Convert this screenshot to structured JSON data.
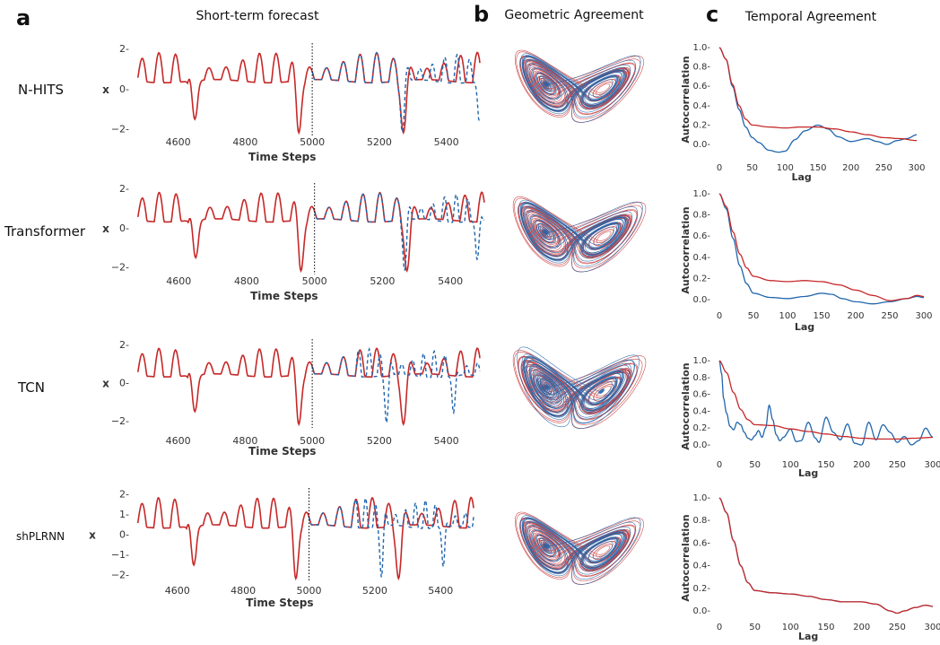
{
  "panel_labels": [
    "a",
    "b",
    "c"
  ],
  "column_titles": [
    "Short-term forecast",
    "Geometric Agreement",
    "Temporal Agreement"
  ],
  "colors": {
    "ground_truth": "#c62828",
    "prediction": "#2166ac",
    "divider": "#000000"
  },
  "chart_data": [
    {
      "type": "line",
      "model": "N-HITS",
      "xlabel": "Time Steps",
      "ylabel": "x",
      "xticks": [
        4600,
        4800,
        5000,
        5200,
        5400
      ],
      "yticks": [
        "2",
        "0",
        "−2"
      ],
      "xlim": [
        4470,
        5500
      ],
      "ylim": [
        -2.2,
        2.1
      ],
      "forecast_start": 5000,
      "prediction_style": "dashed",
      "ground_truth_peaks": [
        4510,
        4540,
        4650,
        4725,
        4765,
        4805,
        4850,
        4890,
        4970,
        5030,
        5080,
        5160,
        5205,
        5260,
        5300,
        5380,
        5420,
        5460,
        5500
      ],
      "prediction_divergence": 5260
    },
    {
      "type": "line",
      "model": "Transformer",
      "xlabel": "Time Steps",
      "ylabel": "x",
      "xticks": [
        4600,
        4800,
        5000,
        5200,
        5400
      ],
      "yticks": [
        "2",
        "0",
        "−2"
      ],
      "xlim": [
        4470,
        5500
      ],
      "ylim": [
        -2.2,
        2.1
      ],
      "forecast_start": 5000,
      "prediction_style": "dashed",
      "prediction_divergence": 5250
    },
    {
      "type": "line",
      "model": "TCN",
      "xlabel": "Time Steps",
      "ylabel": "x",
      "xticks": [
        4600,
        4800,
        5000,
        5200,
        5400
      ],
      "yticks": [
        "2",
        "0",
        "−2"
      ],
      "xlim": [
        4470,
        5500
      ],
      "ylim": [
        -2.2,
        2.1
      ],
      "forecast_start": 5000,
      "prediction_style": "dashed",
      "prediction_divergence": 5130
    },
    {
      "type": "line",
      "model": "shPLRNN",
      "xlabel": "Time Steps",
      "ylabel": "x",
      "xticks": [
        4600,
        4800,
        5000,
        5200,
        5400
      ],
      "yticks": [
        "2",
        "1",
        "0",
        "−1",
        "−2"
      ],
      "xlim": [
        4470,
        5500
      ],
      "ylim": [
        -2.2,
        2.1
      ],
      "forecast_start": 5000,
      "prediction_style": "dashed",
      "prediction_divergence": 5140
    },
    {
      "type": "scatter",
      "model": "N-HITS",
      "description_series": [
        "ground truth attractor",
        "generated attractor"
      ]
    },
    {
      "type": "scatter",
      "model": "Transformer"
    },
    {
      "type": "scatter",
      "model": "TCN"
    },
    {
      "type": "scatter",
      "model": "shPLRNN"
    },
    {
      "type": "line",
      "model": "N-HITS",
      "xlabel": "Lag",
      "ylabel": "Autocorrelation",
      "xlim": [
        0,
        300
      ],
      "ylim": [
        -0.05,
        1.05
      ],
      "xticks": [
        0,
        50,
        100,
        150,
        200,
        250,
        300
      ],
      "yticks": [
        1.0,
        0.8,
        0.6,
        0.4,
        0.2,
        0.0
      ],
      "ground_truth": [
        [
          0,
          1.0
        ],
        [
          10,
          0.88
        ],
        [
          20,
          0.62
        ],
        [
          30,
          0.4
        ],
        [
          40,
          0.26
        ],
        [
          50,
          0.2
        ],
        [
          75,
          0.18
        ],
        [
          100,
          0.17
        ],
        [
          125,
          0.18
        ],
        [
          150,
          0.18
        ],
        [
          175,
          0.16
        ],
        [
          200,
          0.13
        ],
        [
          225,
          0.1
        ],
        [
          250,
          0.07
        ],
        [
          275,
          0.06
        ],
        [
          300,
          0.04
        ]
      ],
      "prediction": [
        [
          0,
          1.0
        ],
        [
          10,
          0.88
        ],
        [
          20,
          0.6
        ],
        [
          30,
          0.36
        ],
        [
          40,
          0.18
        ],
        [
          50,
          0.07
        ],
        [
          60,
          0.02
        ],
        [
          75,
          -0.06
        ],
        [
          90,
          -0.08
        ],
        [
          100,
          -0.07
        ],
        [
          115,
          0.05
        ],
        [
          130,
          0.14
        ],
        [
          150,
          0.2
        ],
        [
          165,
          0.16
        ],
        [
          180,
          0.08
        ],
        [
          200,
          0.03
        ],
        [
          225,
          0.06
        ],
        [
          240,
          0.03
        ],
        [
          255,
          0.0
        ],
        [
          270,
          0.04
        ],
        [
          285,
          0.06
        ],
        [
          300,
          0.1
        ]
      ]
    },
    {
      "type": "line",
      "model": "Transformer",
      "xlabel": "Lag",
      "ylabel": "Autocorrelation",
      "xlim": [
        0,
        300
      ],
      "ylim": [
        -0.05,
        1.05
      ],
      "xticks": [
        0,
        50,
        100,
        150,
        200,
        250,
        300
      ],
      "yticks": [
        1.0,
        0.8,
        0.6,
        0.4,
        0.2,
        0.0
      ],
      "ground_truth": [
        [
          0,
          1.0
        ],
        [
          10,
          0.88
        ],
        [
          20,
          0.64
        ],
        [
          30,
          0.43
        ],
        [
          40,
          0.3
        ],
        [
          50,
          0.22
        ],
        [
          75,
          0.18
        ],
        [
          100,
          0.17
        ],
        [
          125,
          0.18
        ],
        [
          150,
          0.17
        ],
        [
          175,
          0.14
        ],
        [
          200,
          0.09
        ],
        [
          225,
          0.04
        ],
        [
          250,
          -0.01
        ],
        [
          275,
          0.01
        ],
        [
          290,
          0.04
        ],
        [
          300,
          0.03
        ]
      ],
      "prediction": [
        [
          0,
          1.0
        ],
        [
          10,
          0.86
        ],
        [
          20,
          0.58
        ],
        [
          30,
          0.32
        ],
        [
          40,
          0.15
        ],
        [
          50,
          0.06
        ],
        [
          75,
          0.02
        ],
        [
          100,
          0.01
        ],
        [
          125,
          0.03
        ],
        [
          150,
          0.06
        ],
        [
          165,
          0.05
        ],
        [
          180,
          0.01
        ],
        [
          200,
          -0.02
        ],
        [
          225,
          -0.04
        ],
        [
          250,
          -0.02
        ],
        [
          275,
          0.01
        ],
        [
          290,
          0.03
        ],
        [
          300,
          0.02
        ]
      ]
    },
    {
      "type": "line",
      "model": "TCN",
      "xlabel": "Lag",
      "ylabel": "Autocorrelation",
      "xlim": [
        0,
        300
      ],
      "ylim": [
        -0.05,
        1.05
      ],
      "xticks": [
        0,
        50,
        100,
        150,
        200,
        250,
        300
      ],
      "yticks": [
        1.0,
        0.8,
        0.6,
        0.4,
        0.2,
        0.0
      ],
      "ground_truth": [
        [
          0,
          1.0
        ],
        [
          10,
          0.86
        ],
        [
          20,
          0.62
        ],
        [
          30,
          0.42
        ],
        [
          40,
          0.3
        ],
        [
          50,
          0.24
        ],
        [
          75,
          0.23
        ],
        [
          100,
          0.19
        ],
        [
          125,
          0.16
        ],
        [
          150,
          0.13
        ],
        [
          175,
          0.1
        ],
        [
          200,
          0.08
        ],
        [
          225,
          0.07
        ],
        [
          250,
          0.07
        ],
        [
          275,
          0.08
        ],
        [
          300,
          0.09
        ]
      ],
      "prediction": [
        [
          0,
          1.0
        ],
        [
          3,
          0.85
        ],
        [
          6,
          0.55
        ],
        [
          10,
          0.38
        ],
        [
          15,
          0.22
        ],
        [
          20,
          0.18
        ],
        [
          25,
          0.27
        ],
        [
          30,
          0.24
        ],
        [
          35,
          0.15
        ],
        [
          40,
          0.08
        ],
        [
          45,
          0.06
        ],
        [
          50,
          0.11
        ],
        [
          55,
          0.17
        ],
        [
          60,
          0.09
        ],
        [
          65,
          0.2
        ],
        [
          70,
          0.47
        ],
        [
          75,
          0.3
        ],
        [
          80,
          0.12
        ],
        [
          85,
          0.05
        ],
        [
          90,
          0.09
        ],
        [
          100,
          0.19
        ],
        [
          108,
          0.04
        ],
        [
          115,
          0.05
        ],
        [
          125,
          0.27
        ],
        [
          135,
          0.08
        ],
        [
          140,
          0.03
        ],
        [
          150,
          0.33
        ],
        [
          160,
          0.15
        ],
        [
          170,
          0.06
        ],
        [
          180,
          0.25
        ],
        [
          190,
          0.02
        ],
        [
          200,
          0.0
        ],
        [
          210,
          0.27
        ],
        [
          220,
          0.06
        ],
        [
          230,
          0.24
        ],
        [
          240,
          0.15
        ],
        [
          250,
          0.03
        ],
        [
          260,
          0.1
        ],
        [
          270,
          0.0
        ],
        [
          280,
          0.05
        ],
        [
          290,
          0.2
        ],
        [
          300,
          0.09
        ]
      ]
    },
    {
      "type": "line",
      "model": "shPLRNN",
      "xlabel": "Lag",
      "ylabel": "Autocorrelation",
      "xlim": [
        0,
        300
      ],
      "ylim": [
        -0.05,
        1.05
      ],
      "xticks": [
        0,
        50,
        100,
        150,
        200,
        250,
        300
      ],
      "yticks": [
        1.0,
        0.8,
        0.6,
        0.4,
        0.2,
        0.0
      ],
      "ground_truth": [
        [
          0,
          1.0
        ],
        [
          10,
          0.87
        ],
        [
          20,
          0.62
        ],
        [
          30,
          0.4
        ],
        [
          40,
          0.25
        ],
        [
          50,
          0.18
        ],
        [
          75,
          0.16
        ],
        [
          100,
          0.15
        ],
        [
          125,
          0.13
        ],
        [
          150,
          0.1
        ],
        [
          175,
          0.08
        ],
        [
          200,
          0.08
        ],
        [
          220,
          0.06
        ],
        [
          240,
          0.0
        ],
        [
          250,
          -0.02
        ],
        [
          260,
          0.0
        ],
        [
          275,
          0.03
        ],
        [
          290,
          0.05
        ],
        [
          300,
          0.04
        ]
      ],
      "prediction": [
        [
          0,
          1.0
        ],
        [
          10,
          0.87
        ],
        [
          20,
          0.62
        ],
        [
          30,
          0.4
        ],
        [
          40,
          0.25
        ],
        [
          50,
          0.18
        ],
        [
          75,
          0.16
        ],
        [
          100,
          0.15
        ],
        [
          125,
          0.13
        ],
        [
          150,
          0.1
        ],
        [
          175,
          0.08
        ],
        [
          200,
          0.08
        ],
        [
          220,
          0.06
        ],
        [
          240,
          0.0
        ],
        [
          250,
          -0.02
        ],
        [
          260,
          0.0
        ],
        [
          275,
          0.03
        ],
        [
          290,
          0.05
        ],
        [
          300,
          0.04
        ]
      ]
    }
  ]
}
